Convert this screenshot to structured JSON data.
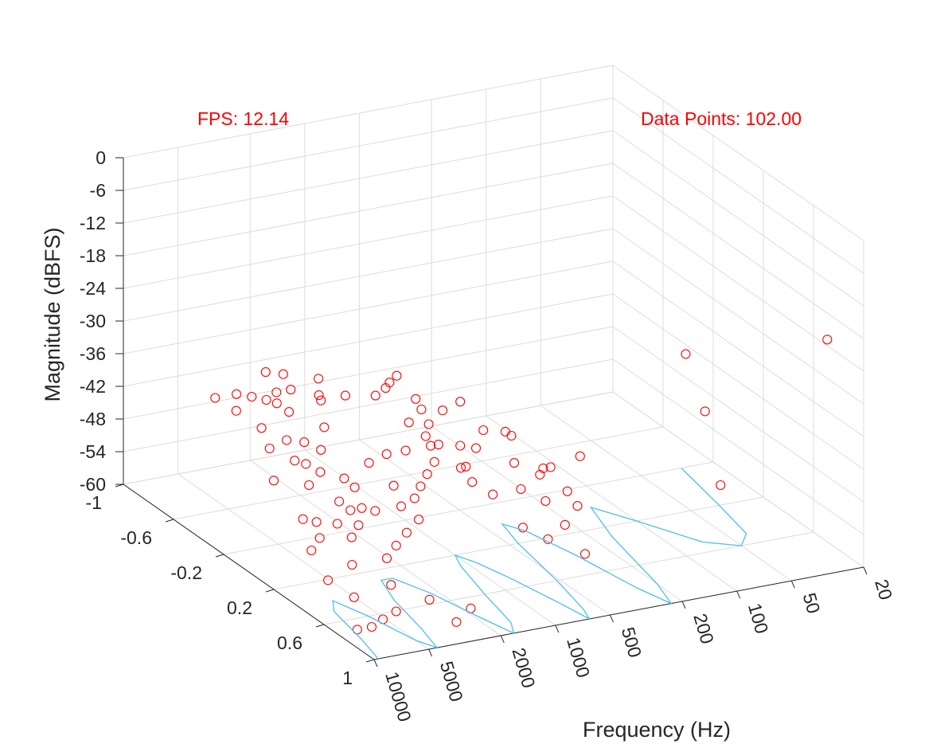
{
  "annotations": {
    "fps": "FPS: 12.14",
    "data_points": "Data Points: 102.00"
  },
  "colors": {
    "marker": "#ff0000",
    "line": "#4dbeee",
    "grid": "#dcdcdc",
    "axis": "#262626",
    "annotation": "#ff0000"
  },
  "chart_data": {
    "type": "scatter",
    "projection": "3d",
    "xlabel": "Frequency (Hz)",
    "ylabel": "",
    "zlabel": "Magnitude (dBFS)",
    "x_scale": "log",
    "x_ticks": [
      20,
      50,
      100,
      200,
      500,
      1000,
      2000,
      5000,
      10000
    ],
    "x_tick_labels": [
      "20",
      "50",
      "100",
      "200",
      "500",
      "1000",
      "2000",
      "5000",
      "10000"
    ],
    "y_ticks": [
      -1,
      -0.6,
      -0.2,
      0.2,
      0.6,
      1
    ],
    "y_tick_labels": [
      "-1",
      "-0.6",
      "-0.2",
      "0.2",
      "0.6",
      "1"
    ],
    "z_ticks": [
      0,
      -6,
      -12,
      -18,
      -24,
      -30,
      -36,
      -42,
      -48,
      -54,
      -60
    ],
    "z_tick_labels": [
      "0",
      "-6",
      "-12",
      "-18",
      "-24",
      "-30",
      "-36",
      "-42",
      "-48",
      "-54",
      "-60"
    ],
    "xlim": [
      20,
      10000
    ],
    "ylim": [
      -1,
      1
    ],
    "zlim": [
      -60,
      0
    ],
    "grid": true,
    "series": [
      {
        "type": "scatter",
        "marker": "circle-open",
        "points": [
          [
            25,
            0.85,
            -20
          ],
          [
            58,
            0.25,
            -30
          ],
          [
            105,
            0.9,
            -42
          ],
          [
            93,
            0.7,
            -32
          ],
          [
            330,
            0.5,
            -40
          ],
          [
            420,
            0.55,
            -45
          ],
          [
            700,
            0.5,
            -44
          ],
          [
            620,
            0.3,
            -37
          ],
          [
            450,
            0.4,
            -43
          ],
          [
            480,
            0.5,
            -41
          ],
          [
            550,
            0.5,
            -42
          ],
          [
            490,
            0.2,
            -40
          ],
          [
            800,
            0.8,
            -48
          ],
          [
            1100,
            0.8,
            -45
          ],
          [
            1000,
            0.5,
            -44
          ],
          [
            1300,
            0.5,
            -41
          ],
          [
            1200,
            0.4,
            -40
          ],
          [
            1500,
            0.5,
            -38
          ],
          [
            1700,
            0.4,
            -35
          ],
          [
            2000,
            0.4,
            -33
          ],
          [
            1800,
            0.3,
            -30
          ],
          [
            2100,
            0.5,
            -36
          ],
          [
            2300,
            0.5,
            -38
          ],
          [
            2500,
            0.5,
            -40
          ],
          [
            2100,
            0.2,
            -25
          ],
          [
            2300,
            0.2,
            -26
          ],
          [
            2700,
            0.5,
            -42
          ],
          [
            3000,
            0.6,
            -44
          ],
          [
            3500,
            0.6,
            -46
          ],
          [
            3200,
            0.5,
            -43
          ],
          [
            4000,
            0.6,
            -48
          ],
          [
            4500,
            0.6,
            -50
          ],
          [
            3800,
            0.4,
            -45
          ],
          [
            4200,
            0.3,
            -42
          ],
          [
            4800,
            0.3,
            -40
          ],
          [
            5200,
            0.4,
            -44
          ],
          [
            6000,
            0.5,
            -47
          ],
          [
            5500,
            0.2,
            -36
          ],
          [
            6500,
            0.3,
            -38
          ],
          [
            7200,
            0.5,
            -44
          ],
          [
            6800,
            0.2,
            -34
          ],
          [
            7800,
            0.3,
            -36
          ],
          [
            8500,
            0.2,
            -33
          ],
          [
            9000,
            0.3,
            -35
          ],
          [
            7000,
            0.6,
            -50
          ],
          [
            8000,
            0.7,
            -54
          ],
          [
            9500,
            0.6,
            -52
          ],
          [
            10000,
            0.5,
            -48
          ],
          [
            3600,
            0.8,
            -55
          ],
          [
            5000,
            0.7,
            -53
          ],
          [
            5500,
            0.8,
            -56
          ],
          [
            6500,
            0.8,
            -57
          ],
          [
            7500,
            0.8,
            -58
          ],
          [
            2500,
            0.9,
            -56
          ],
          [
            3000,
            0.9,
            -58
          ],
          [
            9000,
            0.8,
            -58
          ],
          [
            4500,
            0.1,
            -34
          ],
          [
            4000,
            0.0,
            -31
          ],
          [
            6000,
            0.0,
            -32
          ],
          [
            7000,
            0.0,
            -30
          ],
          [
            8000,
            0.0,
            -29
          ],
          [
            5000,
            -0.1,
            -30
          ],
          [
            8500,
            -0.2,
            -31
          ],
          [
            9500,
            -0.3,
            -33
          ],
          [
            10000,
            -0.1,
            -32
          ],
          [
            9000,
            0.1,
            -36
          ],
          [
            8500,
            0.0,
            -34
          ],
          [
            7000,
            -0.2,
            -32
          ],
          [
            6000,
            -0.1,
            -30
          ],
          [
            5000,
            -0.3,
            -30
          ],
          [
            4000,
            -0.3,
            -31
          ],
          [
            3500,
            -0.1,
            -32
          ],
          [
            3000,
            -0.2,
            -31
          ],
          [
            2500,
            -0.1,
            -33
          ],
          [
            2000,
            0.0,
            -32
          ],
          [
            1500,
            -0.1,
            -33
          ],
          [
            1200,
            0.0,
            -34
          ],
          [
            1000,
            0.1,
            -35
          ],
          [
            800,
            0.1,
            -34
          ],
          [
            10000,
            0.2,
            -40
          ],
          [
            9500,
            0.4,
            -44
          ],
          [
            9000,
            0.5,
            -46
          ],
          [
            8000,
            0.4,
            -45
          ],
          [
            7500,
            0.3,
            -40
          ],
          [
            6000,
            0.4,
            -42
          ],
          [
            5500,
            0.5,
            -45
          ],
          [
            4500,
            0.4,
            -44
          ],
          [
            3500,
            0.3,
            -38
          ],
          [
            3000,
            0.4,
            -41
          ],
          [
            2800,
            0.3,
            -37
          ],
          [
            2200,
            0.3,
            -37
          ],
          [
            1800,
            0.2,
            -34
          ],
          [
            1600,
            0.3,
            -37
          ],
          [
            1400,
            0.2,
            -35
          ],
          [
            1100,
            0.3,
            -38
          ],
          [
            900,
            0.3,
            -39
          ],
          [
            700,
            0.2,
            -38
          ],
          [
            650,
            0.4,
            -41
          ],
          [
            600,
            0.6,
            -45
          ],
          [
            550,
            0.7,
            -48
          ],
          [
            500,
            0.8,
            -52
          ],
          [
            400,
            0.6,
            -47
          ]
        ]
      },
      {
        "type": "line",
        "points": [
          [
            30,
            -0.2,
            -60
          ],
          [
            35,
            0.2,
            -60
          ],
          [
            40,
            0.5,
            -60
          ],
          [
            50,
            0.6,
            -60
          ],
          [
            70,
            0.5,
            -60
          ],
          [
            100,
            0.2,
            -60
          ],
          [
            130,
            0.0,
            -60
          ],
          [
            160,
            0.3,
            -60
          ],
          [
            200,
            0.8,
            -60
          ],
          [
            230,
            1.0,
            -60
          ],
          [
            260,
            0.8,
            -60
          ],
          [
            300,
            0.4,
            -60
          ],
          [
            350,
            0.1,
            -60
          ],
          [
            400,
            0.0,
            -60
          ],
          [
            450,
            0.2,
            -60
          ],
          [
            520,
            0.6,
            -60
          ],
          [
            600,
            0.9,
            -60
          ],
          [
            650,
            1.0,
            -60
          ],
          [
            700,
            0.8,
            -60
          ],
          [
            800,
            0.5,
            -60
          ],
          [
            900,
            0.3,
            -60
          ],
          [
            1000,
            0.2,
            -60
          ],
          [
            1100,
            0.3,
            -60
          ],
          [
            1300,
            0.6,
            -60
          ],
          [
            1500,
            0.9,
            -60
          ],
          [
            1700,
            1.0,
            -60
          ],
          [
            1900,
            0.8,
            -60
          ],
          [
            2200,
            0.5,
            -60
          ],
          [
            2600,
            0.3,
            -60
          ],
          [
            3000,
            0.3,
            -60
          ],
          [
            3500,
            0.5,
            -60
          ],
          [
            4000,
            0.8,
            -60
          ],
          [
            4500,
            1.0,
            -60
          ],
          [
            5000,
            0.9,
            -60
          ],
          [
            5700,
            0.6,
            -60
          ],
          [
            6500,
            0.4,
            -60
          ],
          [
            7500,
            0.5,
            -60
          ],
          [
            8500,
            0.8,
            -60
          ],
          [
            9500,
            1.0,
            -60
          ]
        ]
      }
    ]
  }
}
